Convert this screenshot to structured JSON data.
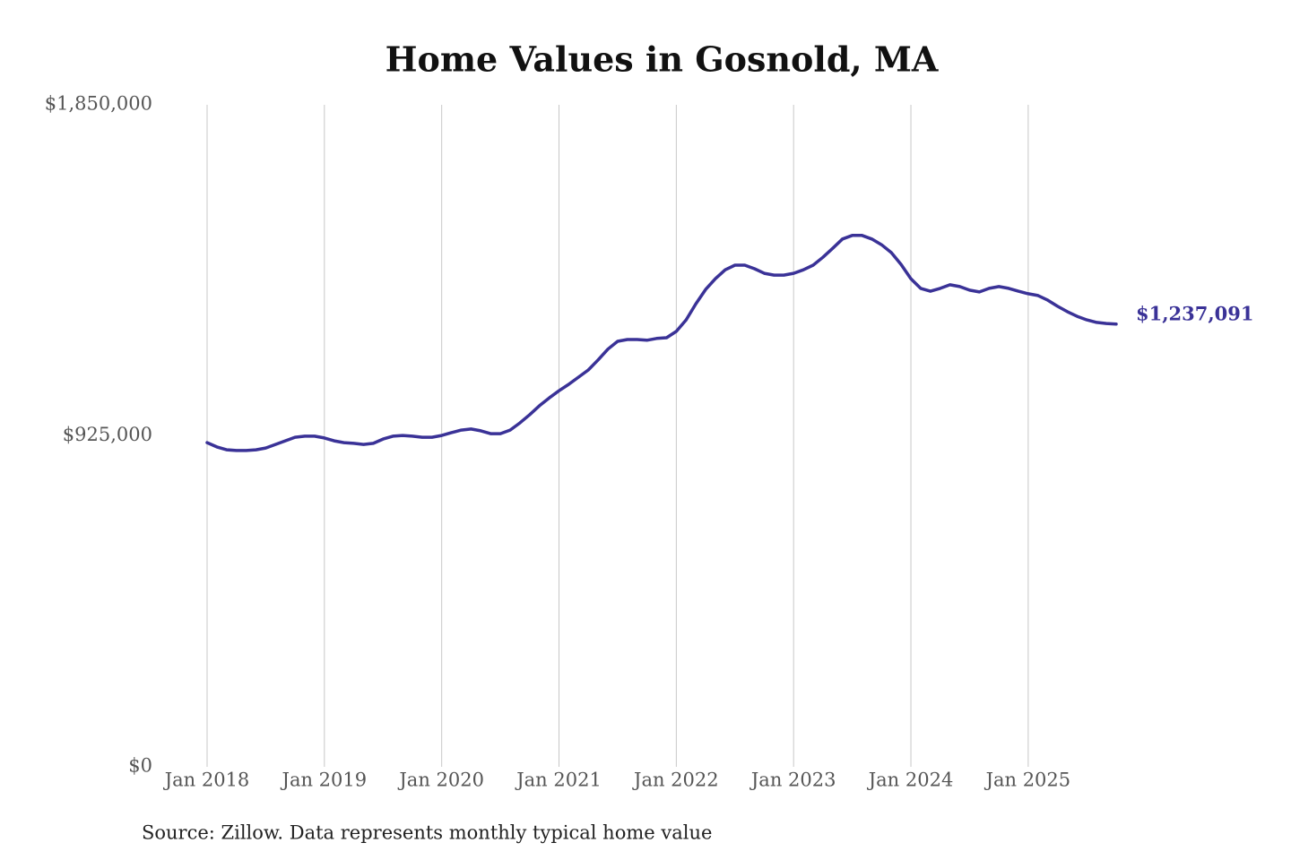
{
  "chart_data": {
    "type": "line",
    "title": "Home Values in Gosnold, MA",
    "source": "Source: Zillow. Data represents monthly typical home value",
    "color": "#3a3297",
    "grid": "x",
    "x": [
      "2018-01",
      "2018-02",
      "2018-03",
      "2018-04",
      "2018-05",
      "2018-06",
      "2018-07",
      "2018-08",
      "2018-09",
      "2018-10",
      "2018-11",
      "2018-12",
      "2019-01",
      "2019-02",
      "2019-03",
      "2019-04",
      "2019-05",
      "2019-06",
      "2019-07",
      "2019-08",
      "2019-09",
      "2019-10",
      "2019-11",
      "2019-12",
      "2020-01",
      "2020-02",
      "2020-03",
      "2020-04",
      "2020-05",
      "2020-06",
      "2020-07",
      "2020-08",
      "2020-09",
      "2020-10",
      "2020-11",
      "2020-12",
      "2021-01",
      "2021-02",
      "2021-03",
      "2021-04",
      "2021-05",
      "2021-06",
      "2021-07",
      "2021-08",
      "2021-09",
      "2021-10",
      "2021-11",
      "2021-12",
      "2022-01",
      "2022-02",
      "2022-03",
      "2022-04",
      "2022-05",
      "2022-06",
      "2022-07",
      "2022-08",
      "2022-09",
      "2022-10",
      "2022-11",
      "2022-12",
      "2023-01",
      "2023-02",
      "2023-03",
      "2023-04",
      "2023-05",
      "2023-06",
      "2023-07",
      "2023-08",
      "2023-09",
      "2023-10",
      "2023-11",
      "2023-12",
      "2024-01",
      "2024-02",
      "2024-03",
      "2024-04",
      "2024-05",
      "2024-06",
      "2024-07",
      "2024-08",
      "2024-09",
      "2024-10",
      "2024-11",
      "2024-12",
      "2025-01",
      "2025-02",
      "2025-03",
      "2025-04",
      "2025-05",
      "2025-06",
      "2025-07",
      "2025-08",
      "2025-09",
      "2025-10"
    ],
    "values": [
      906000,
      894000,
      886000,
      884000,
      884000,
      886000,
      891000,
      901000,
      911000,
      921000,
      924000,
      924000,
      919000,
      911000,
      906000,
      904000,
      901000,
      904000,
      916000,
      924000,
      926000,
      924000,
      921000,
      921000,
      926000,
      934000,
      941000,
      944000,
      939000,
      931000,
      931000,
      941000,
      961000,
      984000,
      1009000,
      1031000,
      1051000,
      1069000,
      1089000,
      1109000,
      1137000,
      1167000,
      1189000,
      1194000,
      1194000,
      1192000,
      1197000,
      1199000,
      1217000,
      1249000,
      1294000,
      1334000,
      1364000,
      1389000,
      1402000,
      1402000,
      1392000,
      1379000,
      1374000,
      1374000,
      1379000,
      1389000,
      1402000,
      1424000,
      1449000,
      1475000,
      1485000,
      1485000,
      1475000,
      1459000,
      1437000,
      1404000,
      1364000,
      1337000,
      1329000,
      1337000,
      1347000,
      1342000,
      1332000,
      1327000,
      1337000,
      1342000,
      1337000,
      1329000,
      1322000,
      1317000,
      1304000,
      1287000,
      1272000,
      1259000,
      1249000,
      1242000,
      1239000,
      1237091
    ],
    "value_labels": [
      null,
      null,
      null,
      null,
      null,
      null,
      null,
      null,
      null,
      null,
      null,
      null,
      null,
      null,
      null,
      null,
      null,
      null,
      null,
      null,
      null,
      null,
      null,
      null,
      null,
      null,
      null,
      null,
      null,
      null,
      null,
      null,
      null,
      null,
      null,
      null,
      null,
      null,
      null,
      null,
      null,
      null,
      null,
      null,
      null,
      null,
      null,
      null,
      null,
      null,
      null,
      null,
      null,
      null,
      null,
      null,
      null,
      null,
      null,
      null,
      null,
      null,
      null,
      null,
      null,
      null,
      null,
      null,
      null,
      null,
      null,
      null,
      null,
      null,
      null,
      null,
      null,
      null,
      null,
      null,
      null,
      null,
      null,
      null,
      null,
      null,
      null,
      null,
      null,
      null,
      null,
      null,
      null,
      "$1,237,091"
    ],
    "xlim": [
      "2018-01",
      "2025-10"
    ],
    "xticks": [
      {
        "value": "2018-01",
        "label": "Jan 2018"
      },
      {
        "value": "2019-01",
        "label": "Jan 2019"
      },
      {
        "value": "2020-01",
        "label": "Jan 2020"
      },
      {
        "value": "2021-01",
        "label": "Jan 2021"
      },
      {
        "value": "2022-01",
        "label": "Jan 2022"
      },
      {
        "value": "2023-01",
        "label": "Jan 2023"
      },
      {
        "value": "2024-01",
        "label": "Jan 2024"
      },
      {
        "value": "2025-01",
        "label": "Jan 2025"
      }
    ],
    "ylim": [
      0,
      1850000
    ],
    "yticks": [
      {
        "value": 0,
        "label": "$0"
      },
      {
        "value": 925000,
        "label": "$925,000"
      },
      {
        "value": 1850000,
        "label": "$1,850,000"
      }
    ]
  }
}
